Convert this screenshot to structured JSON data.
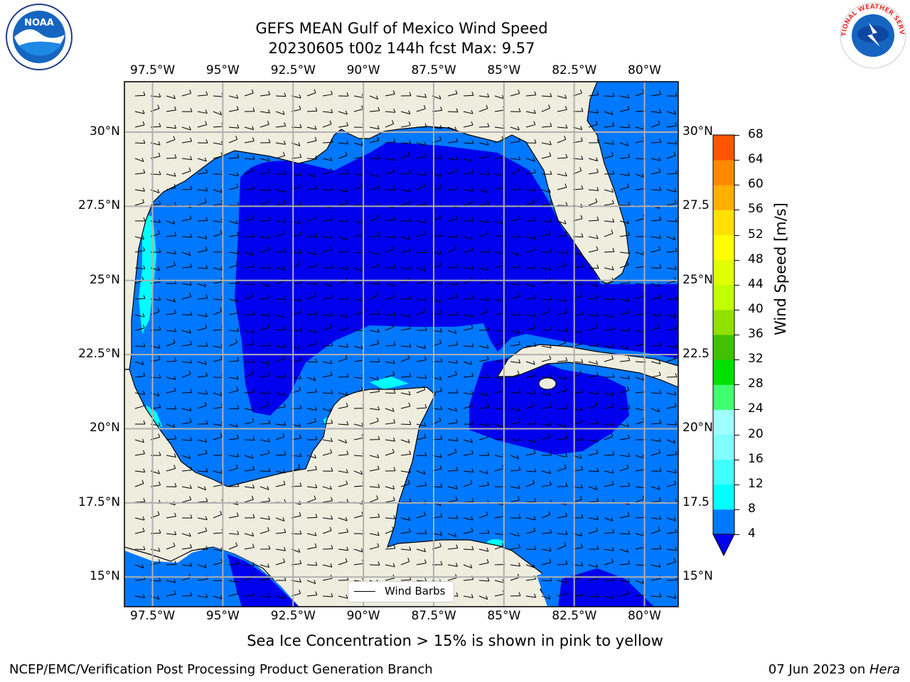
{
  "title": {
    "line1": "GEFS MEAN Gulf of Mexico Wind Speed",
    "line2": "20230605 t00z 144h fcst   Max: 9.57"
  },
  "logos": {
    "left": "NOAA",
    "right": "NATIONAL WEATHER SERVICE"
  },
  "map": {
    "lon_range": [
      -98.5,
      -78.8
    ],
    "lat_range": [
      14.0,
      31.7
    ],
    "lon_ticks": [
      "97.5°W",
      "95°W",
      "92.5°W",
      "90°W",
      "87.5°W",
      "85°W",
      "82.5°W",
      "80°W"
    ],
    "lon_tick_values": [
      -97.5,
      -95,
      -92.5,
      -90,
      -87.5,
      -85,
      -82.5,
      -80
    ],
    "lat_ticks": [
      "30°N",
      "27.5°N",
      "25°N",
      "22.5°N",
      "20°N",
      "17.5°N",
      "15°N"
    ],
    "lat_tick_values": [
      30,
      27.5,
      25,
      22.5,
      20,
      17.5,
      15
    ],
    "right_lat_ticks": [
      "30°N",
      "27.5",
      "25°N",
      "22.5",
      "20°N",
      "17.5",
      "15°N"
    ],
    "grid": true,
    "colors": {
      "land": "#efedde",
      "wind_4_8": "#0078ff",
      "wind_below": "#0000ee",
      "wind_8_12": "#00ffff",
      "grid": "#b0b0b0"
    }
  },
  "legend": {
    "label": "Wind Barbs"
  },
  "colorbar": {
    "label": "Wind Speed [m/s]",
    "ticks": [
      "68",
      "64",
      "60",
      "56",
      "52",
      "48",
      "44",
      "40",
      "36",
      "32",
      "28",
      "24",
      "20",
      "16",
      "12",
      "8",
      "4"
    ],
    "colors": [
      "#0000ee",
      "#0078ff",
      "#00ffff",
      "#40ffff",
      "#80ffff",
      "#a0ffff",
      "#40ff70",
      "#00e000",
      "#40c000",
      "#90e000",
      "#c0ff00",
      "#e0ff00",
      "#ffff00",
      "#ffe000",
      "#ffb000",
      "#ff8800",
      "#ff5500",
      "#ff2200",
      "#ff0000"
    ]
  },
  "note": "Sea Ice Concentration > 15% is shown in pink to yellow",
  "footer": {
    "left": "NCEP/EMC/Verification Post Processing Product Generation Branch",
    "right_date": "07 Jun 2023 on ",
    "right_host": "Hera"
  }
}
